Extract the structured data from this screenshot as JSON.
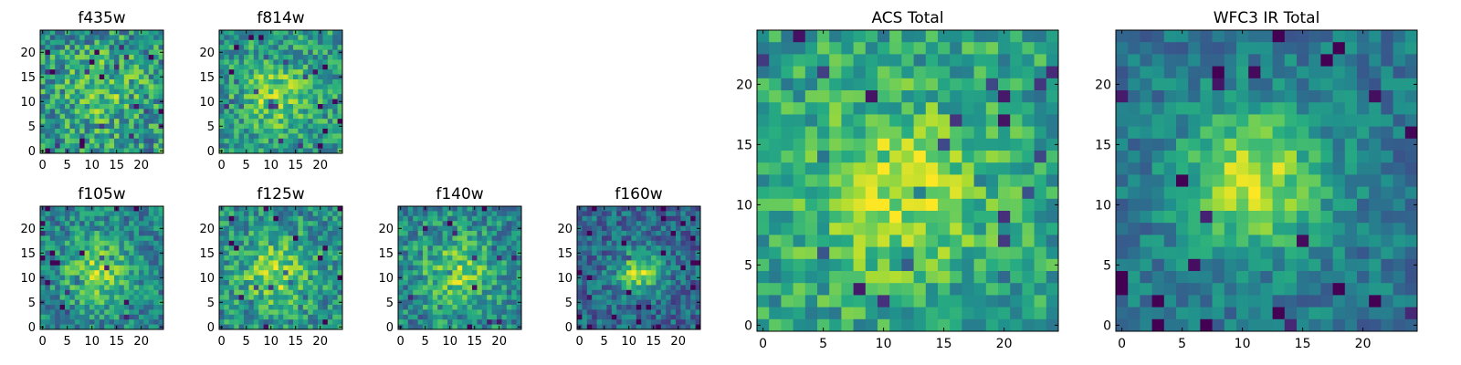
{
  "chart_data": [
    {
      "type": "heatmap",
      "title": "f435w",
      "x_ticks": [
        "0",
        "5",
        "10",
        "15",
        "20"
      ],
      "y_ticks": [
        "20",
        "15",
        "10",
        "5",
        "0"
      ],
      "grid_size": 25,
      "colormap": "viridis",
      "blob": {
        "center": [
          12,
          12
        ],
        "sigma": 5.5,
        "peak": 0.18,
        "noise": 0.55,
        "floor": 0.52,
        "seed": 11
      }
    },
    {
      "type": "heatmap",
      "title": "f814w",
      "x_ticks": [
        "0",
        "5",
        "10",
        "15",
        "20"
      ],
      "y_ticks": [
        "20",
        "15",
        "10",
        "5",
        "0"
      ],
      "grid_size": 25,
      "colormap": "viridis",
      "blob": {
        "center": [
          11,
          11
        ],
        "sigma": 4.5,
        "peak": 0.28,
        "noise": 0.45,
        "floor": 0.55,
        "seed": 23
      }
    },
    {
      "type": "heatmap",
      "title": "f105w",
      "x_ticks": [
        "0",
        "5",
        "10",
        "15",
        "20"
      ],
      "y_ticks": [
        "20",
        "15",
        "10",
        "5",
        "0"
      ],
      "grid_size": 25,
      "colormap": "viridis",
      "blob": {
        "center": [
          11,
          11
        ],
        "sigma": 4.8,
        "peak": 0.38,
        "noise": 0.42,
        "floor": 0.45,
        "seed": 37
      }
    },
    {
      "type": "heatmap",
      "title": "f125w",
      "x_ticks": [
        "0",
        "5",
        "10",
        "15",
        "20"
      ],
      "y_ticks": [
        "20",
        "15",
        "10",
        "5",
        "0"
      ],
      "grid_size": 25,
      "colormap": "viridis",
      "blob": {
        "center": [
          11,
          11
        ],
        "sigma": 5.0,
        "peak": 0.32,
        "noise": 0.45,
        "floor": 0.5,
        "seed": 41
      }
    },
    {
      "type": "heatmap",
      "title": "f140w",
      "x_ticks": [
        "0",
        "5",
        "10",
        "15",
        "20"
      ],
      "y_ticks": [
        "20",
        "15",
        "10",
        "5",
        "0"
      ],
      "grid_size": 25,
      "colormap": "viridis",
      "blob": {
        "center": [
          12,
          11
        ],
        "sigma": 5.2,
        "peak": 0.32,
        "noise": 0.45,
        "floor": 0.47,
        "seed": 53
      }
    },
    {
      "type": "heatmap",
      "title": "f160w",
      "x_ticks": [
        "0",
        "5",
        "10",
        "15",
        "20"
      ],
      "y_ticks": [
        "20",
        "15",
        "10",
        "5",
        "0"
      ],
      "grid_size": 25,
      "colormap": "viridis",
      "blob": {
        "center": [
          12,
          11
        ],
        "sigma": 3.2,
        "peak": 0.5,
        "noise": 0.38,
        "floor": 0.35,
        "seed": 67
      }
    },
    {
      "type": "heatmap",
      "title": "ACS Total",
      "x_ticks": [
        "0",
        "5",
        "10",
        "15",
        "20"
      ],
      "y_ticks": [
        "20",
        "15",
        "10",
        "5",
        "0"
      ],
      "grid_size": 25,
      "colormap": "viridis",
      "blob": {
        "center": [
          11,
          11
        ],
        "sigma": 5.0,
        "peak": 0.3,
        "noise": 0.4,
        "floor": 0.58,
        "seed": 79
      }
    },
    {
      "type": "heatmap",
      "title": "WFC3 IR Total",
      "x_ticks": [
        "0",
        "5",
        "10",
        "15",
        "20"
      ],
      "y_ticks": [
        "20",
        "15",
        "10",
        "5",
        "0"
      ],
      "grid_size": 25,
      "colormap": "viridis",
      "blob": {
        "center": [
          11,
          12
        ],
        "sigma": 4.2,
        "peak": 0.5,
        "noise": 0.3,
        "floor": 0.4,
        "seed": 97
      }
    }
  ]
}
